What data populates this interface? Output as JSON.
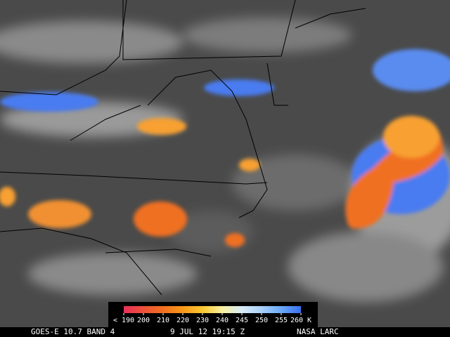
{
  "image": {
    "satellite_label": "GOES-E 10.7 BAND 4",
    "timestamp": "9 JUL 12 19:15 Z",
    "source": "NASA LARC"
  },
  "colorbar": {
    "ticks": [
      {
        "value": 190,
        "label": "< 190",
        "color": "#e8305a"
      },
      {
        "value": 200,
        "label": "200",
        "color": "#ee5038"
      },
      {
        "value": 210,
        "label": "210",
        "color": "#f07020"
      },
      {
        "value": 220,
        "label": "220",
        "color": "#f89818"
      },
      {
        "value": 230,
        "label": "230",
        "color": "#f8c830"
      },
      {
        "value": 240,
        "label": "240",
        "color": "#f8f0a0"
      },
      {
        "value": 245,
        "label": "245",
        "color": "#d8ecf8"
      },
      {
        "value": 250,
        "label": "250",
        "color": "#a8d0f8"
      },
      {
        "value": 255,
        "label": "255",
        "color": "#6aa8f8"
      },
      {
        "value": 260,
        "label": "260 K",
        "color": "#3a70f0"
      }
    ]
  }
}
